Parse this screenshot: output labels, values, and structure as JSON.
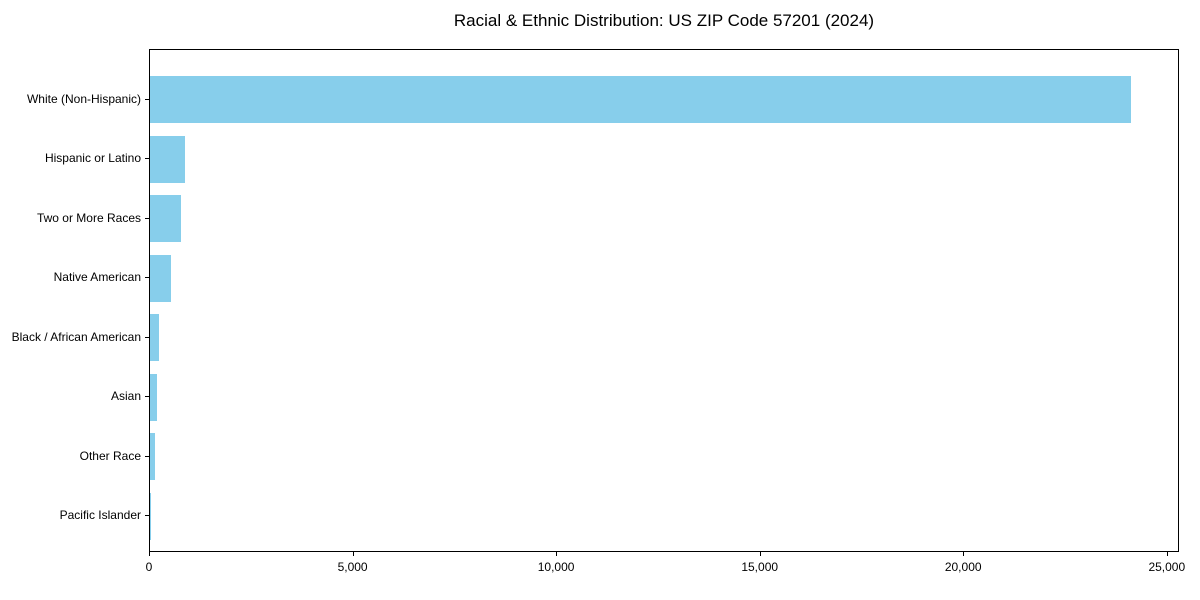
{
  "title": "Racial & Ethnic Distribution: US ZIP Code 57201 (2024)",
  "chart_data": {
    "type": "bar",
    "orientation": "horizontal",
    "title": "Racial & Ethnic Distribution: US ZIP Code 57201 (2024)",
    "categories": [
      "White (Non-Hispanic)",
      "Hispanic or Latino",
      "Two or More Races",
      "Native American",
      "Black / African American",
      "Asian",
      "Other Race",
      "Pacific Islander"
    ],
    "values": [
      24100,
      860,
      755,
      510,
      215,
      170,
      120,
      10
    ],
    "xlabel": "",
    "ylabel": "",
    "xlim": [
      0,
      25300
    ],
    "x_ticks": [
      0,
      5000,
      10000,
      15000,
      20000,
      25000
    ],
    "x_tick_labels": [
      "0",
      "5,000",
      "10,000",
      "15,000",
      "20,000",
      "25,000"
    ],
    "bar_color": "#87CEEB",
    "text_color": "#000000",
    "grid": false,
    "legend": null
  }
}
